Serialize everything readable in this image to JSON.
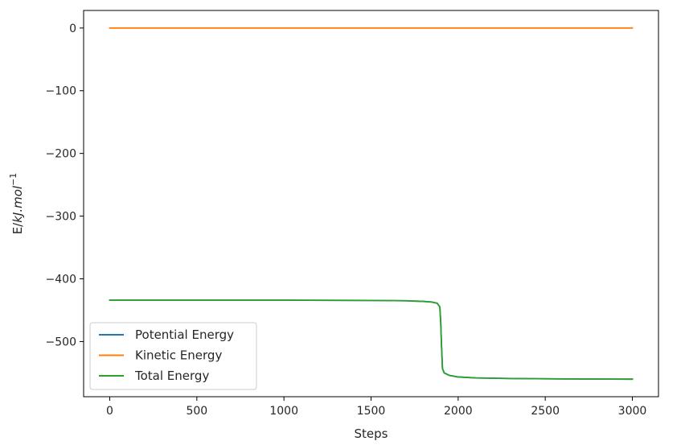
{
  "chart_data": {
    "type": "line",
    "title": "",
    "xlabel": "Steps",
    "ylabel_parts": {
      "base": "E/",
      "italic": "kJ.mol",
      "sup": "−1"
    },
    "xlim": [
      -150,
      3150
    ],
    "ylim": [
      -588,
      28
    ],
    "xticks": [
      {
        "value": 0,
        "label": "0"
      },
      {
        "value": 500,
        "label": "500"
      },
      {
        "value": 1000,
        "label": "1000"
      },
      {
        "value": 1500,
        "label": "1500"
      },
      {
        "value": 2000,
        "label": "2000"
      },
      {
        "value": 2500,
        "label": "2500"
      },
      {
        "value": 3000,
        "label": "3000"
      }
    ],
    "yticks": [
      {
        "value": 0,
        "label": "0"
      },
      {
        "value": -100,
        "label": "−100"
      },
      {
        "value": -200,
        "label": "−200"
      },
      {
        "value": -300,
        "label": "−300"
      },
      {
        "value": -400,
        "label": "−400"
      },
      {
        "value": -500,
        "label": "−500"
      }
    ],
    "grid": false,
    "legend_position": "lower-left",
    "series": [
      {
        "name": "Potential Energy",
        "color": "#1f77b4",
        "points": [
          [
            0,
            -434
          ],
          [
            500,
            -434
          ],
          [
            1000,
            -434
          ],
          [
            1500,
            -434.5
          ],
          [
            1700,
            -435
          ],
          [
            1800,
            -436
          ],
          [
            1850,
            -437
          ],
          [
            1880,
            -439
          ],
          [
            1895,
            -445
          ],
          [
            1900,
            -470
          ],
          [
            1905,
            -510
          ],
          [
            1910,
            -543
          ],
          [
            1920,
            -550
          ],
          [
            1950,
            -554
          ],
          [
            2000,
            -556.5
          ],
          [
            2100,
            -558
          ],
          [
            2300,
            -559
          ],
          [
            2600,
            -559.6
          ],
          [
            3000,
            -560
          ]
        ]
      },
      {
        "name": "Kinetic Energy",
        "color": "#ff7f0e",
        "points": [
          [
            0,
            0
          ],
          [
            1000,
            0
          ],
          [
            2000,
            0
          ],
          [
            3000,
            0
          ]
        ]
      },
      {
        "name": "Total Energy",
        "color": "#2ca02c",
        "points": [
          [
            0,
            -434
          ],
          [
            500,
            -434
          ],
          [
            1000,
            -434
          ],
          [
            1500,
            -434.5
          ],
          [
            1700,
            -435
          ],
          [
            1800,
            -436
          ],
          [
            1850,
            -437
          ],
          [
            1880,
            -439
          ],
          [
            1895,
            -445
          ],
          [
            1900,
            -470
          ],
          [
            1905,
            -510
          ],
          [
            1910,
            -543
          ],
          [
            1920,
            -550
          ],
          [
            1950,
            -554
          ],
          [
            2000,
            -556.5
          ],
          [
            2100,
            -558
          ],
          [
            2300,
            -559
          ],
          [
            2600,
            -559.6
          ],
          [
            3000,
            -560
          ]
        ]
      }
    ]
  }
}
